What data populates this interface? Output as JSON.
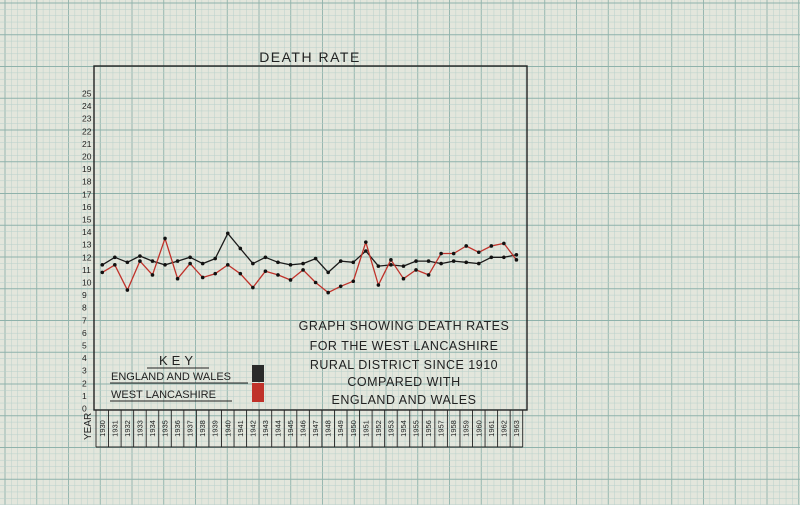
{
  "chart_data": {
    "type": "line",
    "title": "DEATH RATE",
    "subtitle_lines": [
      "GRAPH SHOWING DEATH RATES",
      "FOR THE WEST LANCASHIRE",
      "RURAL DISTRICT SINCE 1910",
      "COMPARED  WITH",
      "ENGLAND  AND  WALES"
    ],
    "xlabel": "YEAR",
    "ylabel": "",
    "ylim": [
      0,
      25
    ],
    "yticks": [
      "0",
      "1",
      "2",
      "3",
      "4",
      "5",
      "6",
      "7",
      "8",
      "9",
      "10",
      "11",
      "12",
      "13",
      "14",
      "15",
      "16",
      "17",
      "18",
      "19",
      "20",
      "21",
      "22",
      "23",
      "24",
      "25"
    ],
    "x": [
      "1930",
      "1931",
      "1932",
      "1933",
      "1934",
      "1935",
      "1936",
      "1937",
      "1938",
      "1939",
      "1940",
      "1941",
      "1942",
      "1943",
      "1944",
      "1945",
      "1946",
      "1947",
      "1948",
      "1949",
      "1950",
      "1951",
      "1952",
      "1953",
      "1954",
      "1955",
      "1956",
      "1957",
      "1958",
      "1959",
      "1960",
      "1961",
      "1962",
      "1963"
    ],
    "legend": {
      "title": "KEY",
      "position": "bottom-left",
      "entries": [
        "ENGLAND AND WALES",
        "WEST LANCASHIRE"
      ]
    },
    "grid": true,
    "series": [
      {
        "name": "ENGLAND AND WALES",
        "color": "#1a1a1a",
        "values": [
          11.4,
          12.0,
          11.6,
          12.1,
          11.7,
          11.4,
          11.7,
          12.0,
          11.5,
          11.9,
          13.9,
          12.7,
          11.5,
          12.0,
          11.6,
          11.4,
          11.5,
          11.9,
          10.8,
          11.7,
          11.6,
          12.5,
          11.3,
          11.4,
          11.3,
          11.7,
          11.7,
          11.5,
          11.7,
          11.6,
          11.5,
          12.0,
          12.0,
          12.2
        ]
      },
      {
        "name": "WEST LANCASHIRE",
        "color": "#c0322a",
        "values": [
          10.8,
          11.4,
          9.4,
          11.7,
          10.6,
          13.5,
          10.3,
          11.5,
          10.4,
          10.7,
          11.4,
          10.7,
          9.6,
          10.9,
          10.6,
          10.2,
          11.0,
          10.0,
          9.2,
          9.7,
          10.1,
          13.2,
          9.8,
          11.8,
          10.3,
          11.0,
          10.6,
          12.3,
          12.3,
          12.9,
          12.4,
          12.9,
          13.1,
          11.8
        ]
      }
    ]
  },
  "colors": {
    "paper": "#e3e6dc",
    "grid_minor": "#b9d0cb",
    "grid_major": "#8fb2ab",
    "axis": "#222222",
    "ew_swatch": "#2a2a2a",
    "wl_swatch": "#c0322a"
  }
}
